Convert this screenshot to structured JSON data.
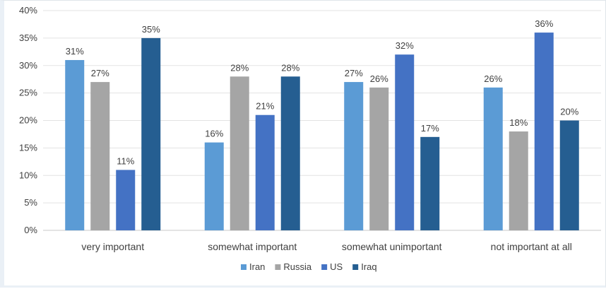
{
  "chart_data": {
    "type": "bar",
    "title": "",
    "xlabel": "",
    "ylabel": "",
    "ylim": [
      0,
      40
    ],
    "yticks": [
      "0%",
      "5%",
      "10%",
      "15%",
      "20%",
      "25%",
      "30%",
      "35%",
      "40%"
    ],
    "ytick_values": [
      0,
      5,
      10,
      15,
      20,
      25,
      30,
      35,
      40
    ],
    "grid": true,
    "legend_position": "bottom",
    "categories": [
      "very important",
      "somewhat important",
      "somewhat unimportant",
      "not important at all"
    ],
    "series": [
      {
        "name": "Iran",
        "color": "#5b9bd5",
        "values": [
          31,
          16,
          27,
          26
        ],
        "labels": [
          "31%",
          "16%",
          "27%",
          "26%"
        ]
      },
      {
        "name": "Russia",
        "color": "#a5a5a5",
        "values": [
          27,
          28,
          26,
          18
        ],
        "labels": [
          "27%",
          "28%",
          "26%",
          "18%"
        ]
      },
      {
        "name": "US",
        "color": "#4472c4",
        "values": [
          11,
          21,
          32,
          36
        ],
        "labels": [
          "11%",
          "21%",
          "32%",
          "36%"
        ]
      },
      {
        "name": "Iraq",
        "color": "#255e91",
        "values": [
          35,
          28,
          17,
          20
        ],
        "labels": [
          "35%",
          "28%",
          "17%",
          "20%"
        ]
      }
    ]
  }
}
